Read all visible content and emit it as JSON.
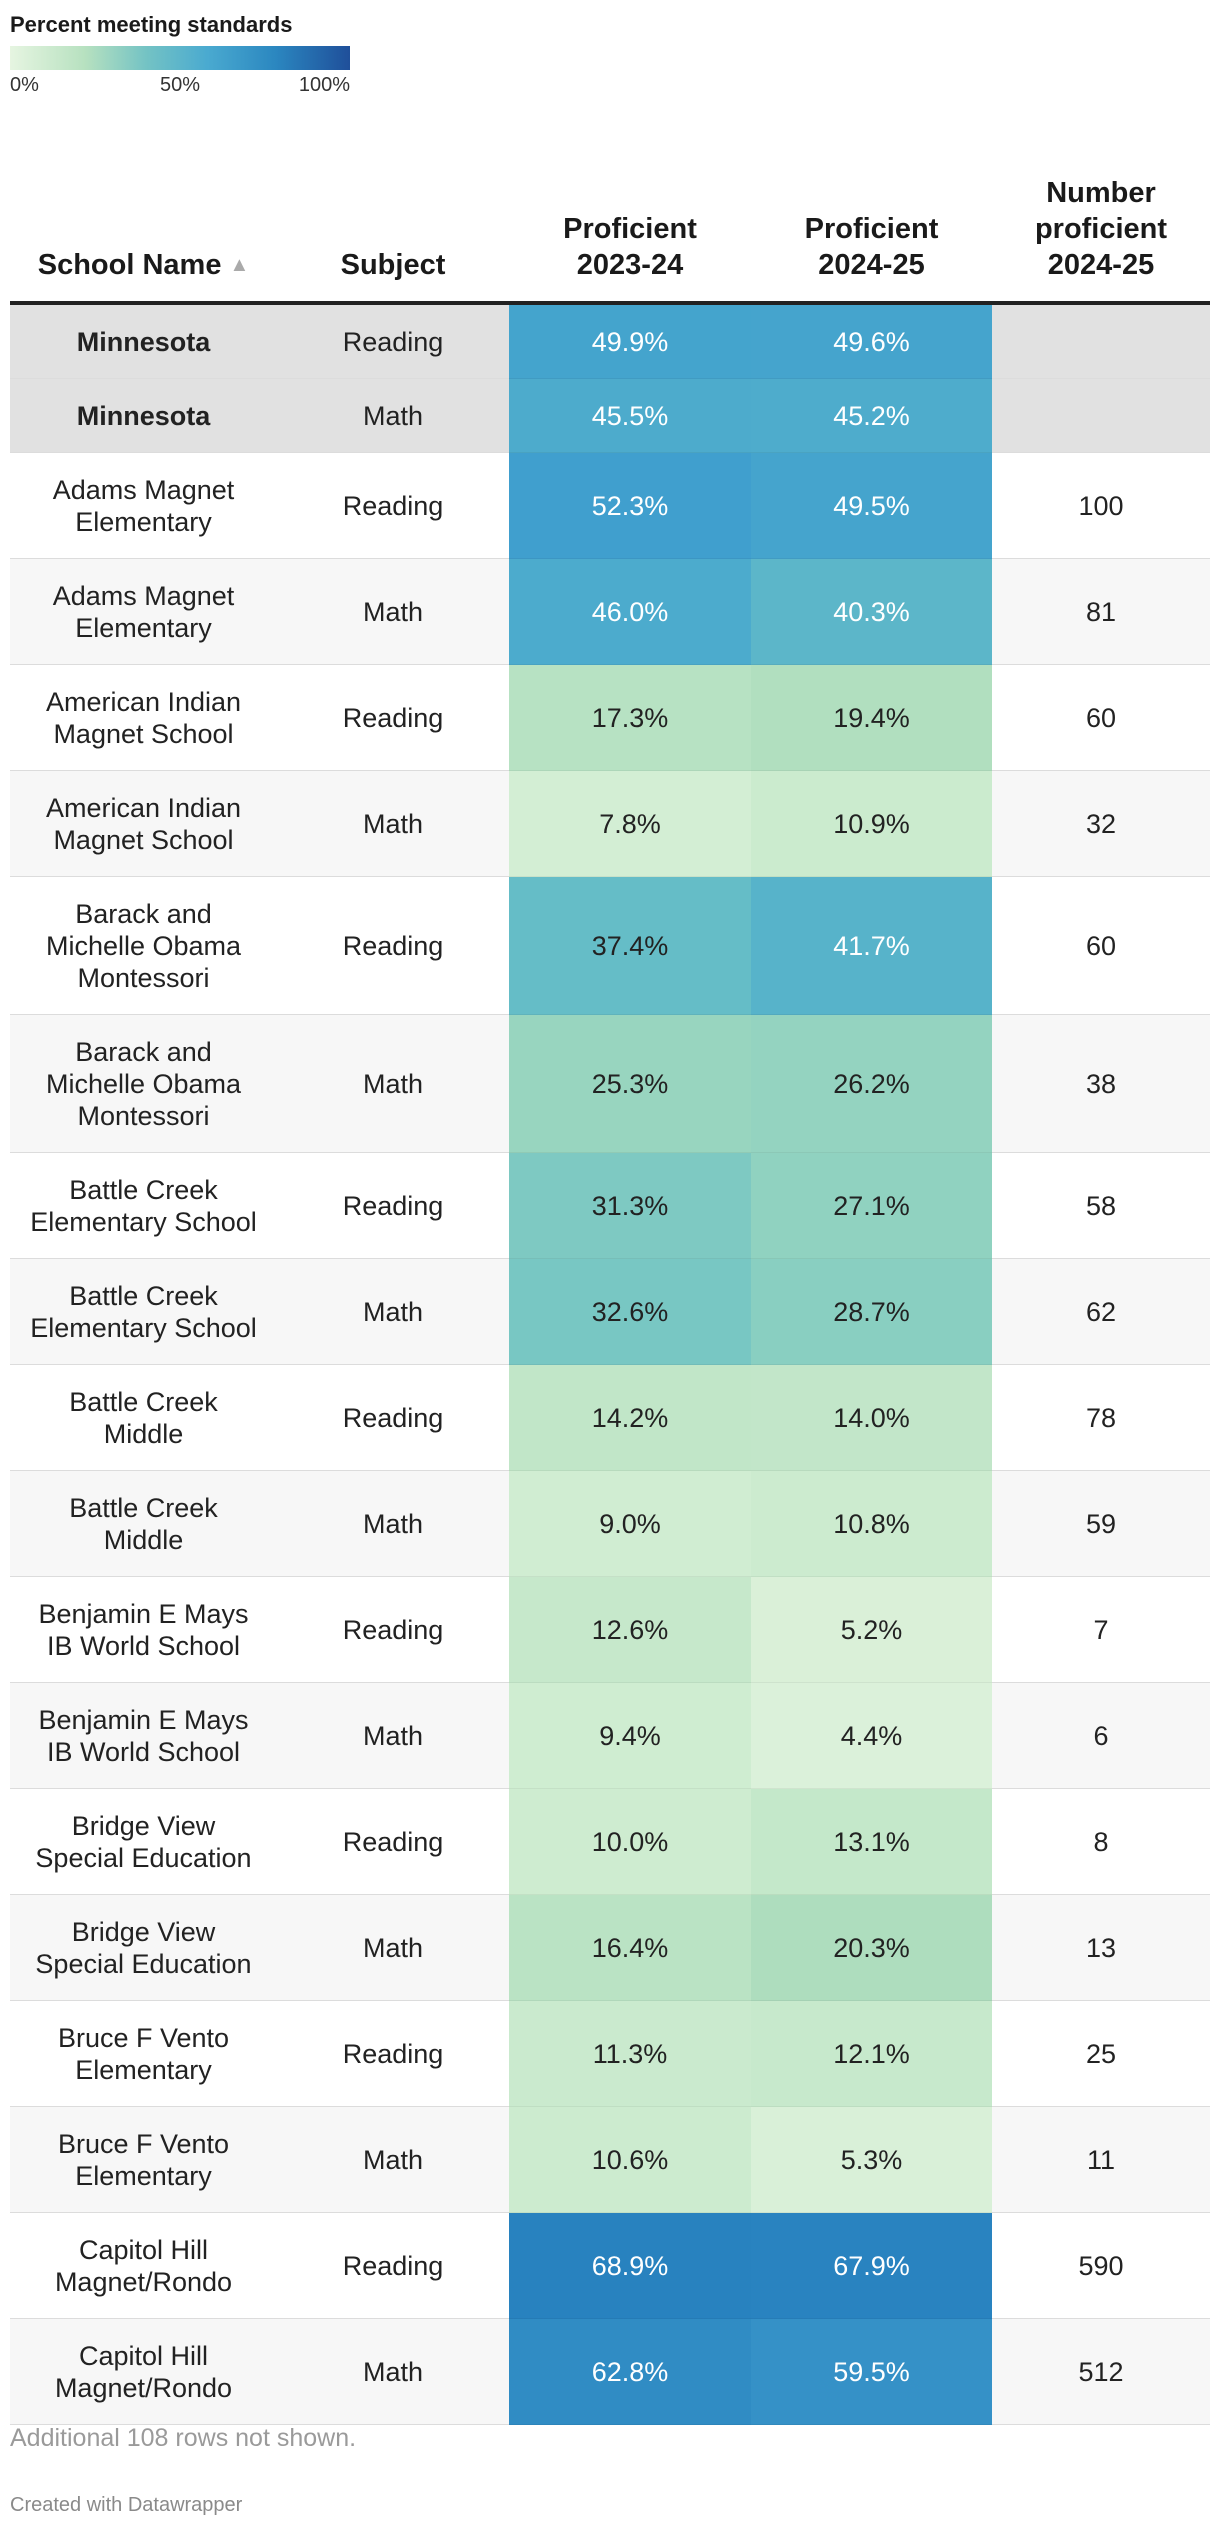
{
  "legend": {
    "title": "Percent meeting standards",
    "ticks": [
      "0%",
      "50%",
      "100%"
    ]
  },
  "table": {
    "headers": {
      "school": "School Name",
      "subject": "Subject",
      "prof_2324": "Proficient 2023-24",
      "prof_2425": "Proficient 2024-25",
      "number_2425": "Number proficient 2024-25"
    },
    "rows": [
      {
        "school": "Minnesota",
        "subject": "Reading",
        "p1": "49.9%",
        "p2": "49.6%",
        "n": "",
        "v1": 49.9,
        "v2": 49.6,
        "state": true
      },
      {
        "school": "Minnesota",
        "subject": "Math",
        "p1": "45.5%",
        "p2": "45.2%",
        "n": "",
        "v1": 45.5,
        "v2": 45.2,
        "state": true
      },
      {
        "school": "Adams Magnet Elementary",
        "subject": "Reading",
        "p1": "52.3%",
        "p2": "49.5%",
        "n": "100",
        "v1": 52.3,
        "v2": 49.5
      },
      {
        "school": "Adams Magnet Elementary",
        "subject": "Math",
        "p1": "46.0%",
        "p2": "40.3%",
        "n": "81",
        "v1": 46.0,
        "v2": 40.3
      },
      {
        "school": "American Indian Magnet School",
        "subject": "Reading",
        "p1": "17.3%",
        "p2": "19.4%",
        "n": "60",
        "v1": 17.3,
        "v2": 19.4
      },
      {
        "school": "American Indian Magnet School",
        "subject": "Math",
        "p1": "7.8%",
        "p2": "10.9%",
        "n": "32",
        "v1": 7.8,
        "v2": 10.9
      },
      {
        "school": "Barack and Michelle Obama Montessori",
        "subject": "Reading",
        "p1": "37.4%",
        "p2": "41.7%",
        "n": "60",
        "v1": 37.4,
        "v2": 41.7
      },
      {
        "school": "Barack and Michelle Obama Montessori",
        "subject": "Math",
        "p1": "25.3%",
        "p2": "26.2%",
        "n": "38",
        "v1": 25.3,
        "v2": 26.2
      },
      {
        "school": "Battle Creek Elementary School",
        "subject": "Reading",
        "p1": "31.3%",
        "p2": "27.1%",
        "n": "58",
        "v1": 31.3,
        "v2": 27.1
      },
      {
        "school": "Battle Creek Elementary School",
        "subject": "Math",
        "p1": "32.6%",
        "p2": "28.7%",
        "n": "62",
        "v1": 32.6,
        "v2": 28.7
      },
      {
        "school": "Battle Creek Middle",
        "subject": "Reading",
        "p1": "14.2%",
        "p2": "14.0%",
        "n": "78",
        "v1": 14.2,
        "v2": 14.0
      },
      {
        "school": "Battle Creek Middle",
        "subject": "Math",
        "p1": "9.0%",
        "p2": "10.8%",
        "n": "59",
        "v1": 9.0,
        "v2": 10.8
      },
      {
        "school": "Benjamin E Mays IB World School",
        "subject": "Reading",
        "p1": "12.6%",
        "p2": "5.2%",
        "n": "7",
        "v1": 12.6,
        "v2": 5.2
      },
      {
        "school": "Benjamin E Mays IB World School",
        "subject": "Math",
        "p1": "9.4%",
        "p2": "4.4%",
        "n": "6",
        "v1": 9.4,
        "v2": 4.4
      },
      {
        "school": "Bridge View Special Education",
        "subject": "Reading",
        "p1": "10.0%",
        "p2": "13.1%",
        "n": "8",
        "v1": 10.0,
        "v2": 13.1
      },
      {
        "school": "Bridge View Special Education",
        "subject": "Math",
        "p1": "16.4%",
        "p2": "20.3%",
        "n": "13",
        "v1": 16.4,
        "v2": 20.3
      },
      {
        "school": "Bruce F Vento Elementary",
        "subject": "Reading",
        "p1": "11.3%",
        "p2": "12.1%",
        "n": "25",
        "v1": 11.3,
        "v2": 12.1
      },
      {
        "school": "Bruce F Vento Elementary",
        "subject": "Math",
        "p1": "10.6%",
        "p2": "5.3%",
        "n": "11",
        "v1": 10.6,
        "v2": 5.3
      },
      {
        "school": "Capitol Hill Magnet/Rondo",
        "subject": "Reading",
        "p1": "68.9%",
        "p2": "67.9%",
        "n": "590",
        "v1": 68.9,
        "v2": 67.9
      },
      {
        "school": "Capitol Hill Magnet/Rondo",
        "subject": "Math",
        "p1": "62.8%",
        "p2": "59.5%",
        "n": "512",
        "v1": 62.8,
        "v2": 59.5
      }
    ]
  },
  "footer": {
    "more_rows": "Additional 108 rows not shown.",
    "credit": "Created with Datawrapper"
  }
}
